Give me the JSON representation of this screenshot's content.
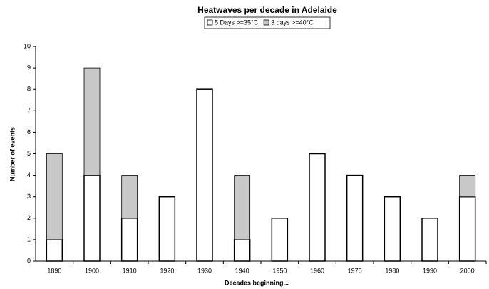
{
  "chart_data": {
    "type": "stacked_bar",
    "title": "Heatwaves per decade in Adelaide",
    "x_label": "Decades beginning...",
    "y_label": "Number of events",
    "categories": [
      "1890",
      "1900",
      "1910",
      "1920",
      "1930",
      "1940",
      "1950",
      "1960",
      "1970",
      "1980",
      "1990",
      "2000"
    ],
    "series": [
      {
        "name": "5 Days >=35°C",
        "color": "#ffffff",
        "values": [
          1,
          4,
          2,
          3,
          8,
          1,
          2,
          5,
          4,
          3,
          2,
          3
        ]
      },
      {
        "name": "3 days >=40°C",
        "color": "#c8c8c8",
        "values": [
          4,
          5,
          2,
          0,
          0,
          3,
          0,
          0,
          0,
          0,
          0,
          1
        ]
      }
    ],
    "ylim": [
      0,
      10
    ],
    "yticks": [
      0,
      1,
      2,
      3,
      4,
      5,
      6,
      7,
      8,
      9,
      10
    ],
    "grid": false,
    "legend": "top"
  }
}
